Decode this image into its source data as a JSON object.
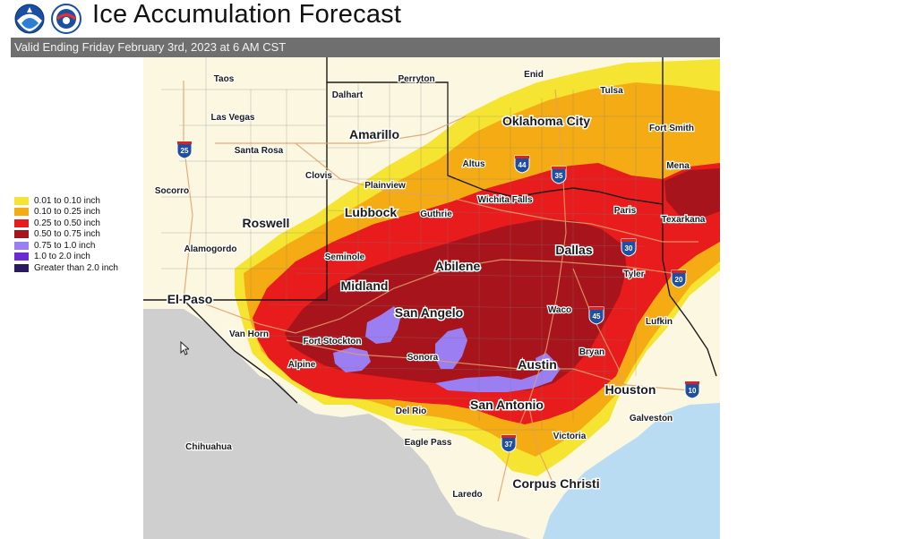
{
  "header": {
    "title": "Ice Accumulation Forecast",
    "valid_text": "Valid Ending Friday February 3rd, 2023 at 6 AM CST"
  },
  "logos": [
    "noaa-logo",
    "nws-logo"
  ],
  "legend": [
    {
      "label": "0.01 to 0.10 inch",
      "color": "#f5e431"
    },
    {
      "label": "0.10 to 0.25 inch",
      "color": "#f5ac14"
    },
    {
      "label": "0.25 to 0.50 inch",
      "color": "#e81c1c"
    },
    {
      "label": "0.50 to 0.75 inch",
      "color": "#a8141c"
    },
    {
      "label": "0.75 to 1.0 inch",
      "color": "#9a7ef2"
    },
    {
      "label": "1.0 to 2.0 inch",
      "color": "#6a2bd6"
    },
    {
      "label": "Greater than 2.0 inch",
      "color": "#2a1a5e"
    }
  ],
  "cities": [
    {
      "name": "Taos",
      "big": false
    },
    {
      "name": "Perryton",
      "big": false
    },
    {
      "name": "Enid",
      "big": false
    },
    {
      "name": "Dalhart",
      "big": false
    },
    {
      "name": "Tulsa",
      "big": false
    },
    {
      "name": "Las Vegas",
      "big": false
    },
    {
      "name": "Oklahoma City",
      "big": true
    },
    {
      "name": "Amarillo",
      "big": true
    },
    {
      "name": "Fort Smith",
      "big": false
    },
    {
      "name": "Santa Rosa",
      "big": false
    },
    {
      "name": "Altus",
      "big": false
    },
    {
      "name": "Mena",
      "big": false
    },
    {
      "name": "Clovis",
      "big": false
    },
    {
      "name": "Socorro",
      "big": false
    },
    {
      "name": "Plainview",
      "big": false
    },
    {
      "name": "Wichita Falls",
      "big": false
    },
    {
      "name": "Lubbock",
      "big": true
    },
    {
      "name": "Guthrie",
      "big": false
    },
    {
      "name": "Paris",
      "big": false
    },
    {
      "name": "Texarkana",
      "big": false
    },
    {
      "name": "Roswell",
      "big": true
    },
    {
      "name": "Alamogordo",
      "big": false
    },
    {
      "name": "Dallas",
      "big": true
    },
    {
      "name": "Seminole",
      "big": false
    },
    {
      "name": "Abilene",
      "big": true
    },
    {
      "name": "Tyler",
      "big": false
    },
    {
      "name": "Midland",
      "big": true
    },
    {
      "name": "El Paso",
      "big": true
    },
    {
      "name": "San Angelo",
      "big": true
    },
    {
      "name": "Waco",
      "big": false
    },
    {
      "name": "Lufkin",
      "big": false
    },
    {
      "name": "Van Horn",
      "big": false
    },
    {
      "name": "Fort Stockton",
      "big": false
    },
    {
      "name": "Bryan",
      "big": false
    },
    {
      "name": "Alpine",
      "big": false
    },
    {
      "name": "Sonora",
      "big": false
    },
    {
      "name": "Austin",
      "big": true
    },
    {
      "name": "Houston",
      "big": true
    },
    {
      "name": "Del Rio",
      "big": false
    },
    {
      "name": "San Antonio",
      "big": true
    },
    {
      "name": "Galveston",
      "big": false
    },
    {
      "name": "Eagle Pass",
      "big": false
    },
    {
      "name": "Victoria",
      "big": false
    },
    {
      "name": "Chihuahua",
      "big": false
    },
    {
      "name": "Laredo",
      "big": false
    },
    {
      "name": "Corpus Christi",
      "big": true
    }
  ],
  "interstates": [
    "25",
    "44",
    "35",
    "30",
    "20",
    "45",
    "10",
    "37"
  ]
}
